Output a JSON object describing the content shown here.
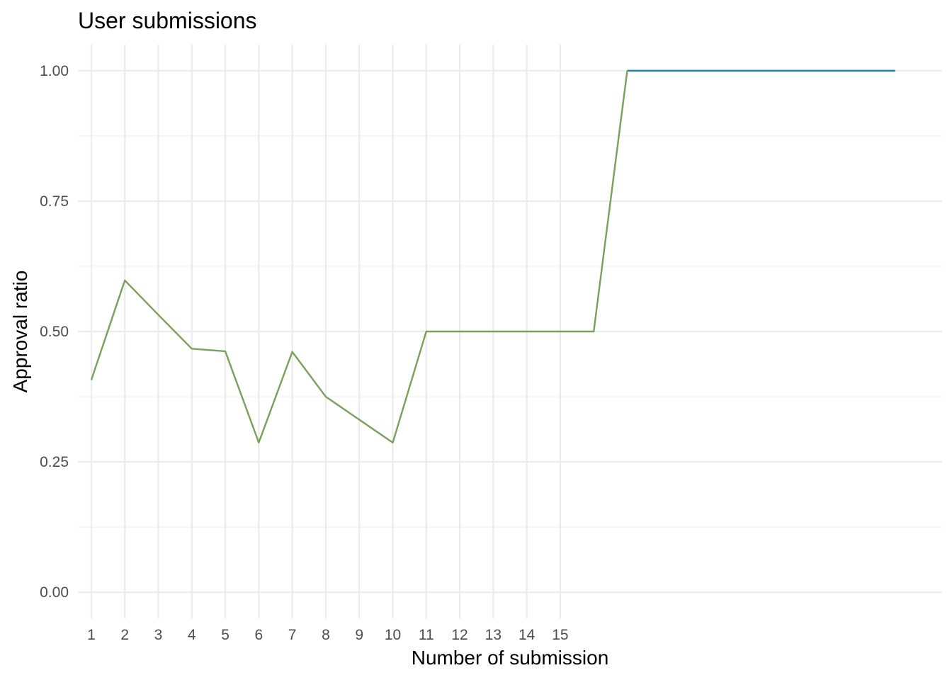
{
  "chart_data": {
    "type": "line",
    "title": "User submissions",
    "xlabel": "Number of submission",
    "ylabel": "Approval ratio",
    "x_ticks": [
      "1",
      "2",
      "3",
      "4",
      "5",
      "6",
      "7",
      "8",
      "9",
      "10",
      "11",
      "12",
      "13",
      "14",
      "15"
    ],
    "y_ticks": [
      "0.00",
      "0.25",
      "0.50",
      "0.75",
      "1.00"
    ],
    "xlim": [
      0.6,
      26.4
    ],
    "ylim": [
      -0.05,
      1.05
    ],
    "grid": true,
    "legend": "none",
    "series": [
      {
        "color": "#1f78b4",
        "x": [
          17,
          18,
          19,
          20,
          21,
          22,
          23,
          24,
          25
        ],
        "y": [
          1.0,
          1.0,
          1.0,
          1.0,
          1.0,
          1.0,
          1.0,
          1.0,
          1.0
        ]
      },
      {
        "color": "#7ba05b",
        "x": [
          1,
          2,
          3,
          4,
          5,
          6,
          7,
          8,
          9,
          10,
          11,
          12,
          13,
          14,
          15,
          16,
          17
        ],
        "y": [
          0.407,
          0.598,
          0.532,
          0.467,
          0.462,
          0.287,
          0.461,
          0.375,
          0.331,
          0.287,
          0.5,
          0.5,
          0.5,
          0.5,
          0.5,
          0.5,
          1.0
        ]
      }
    ]
  }
}
